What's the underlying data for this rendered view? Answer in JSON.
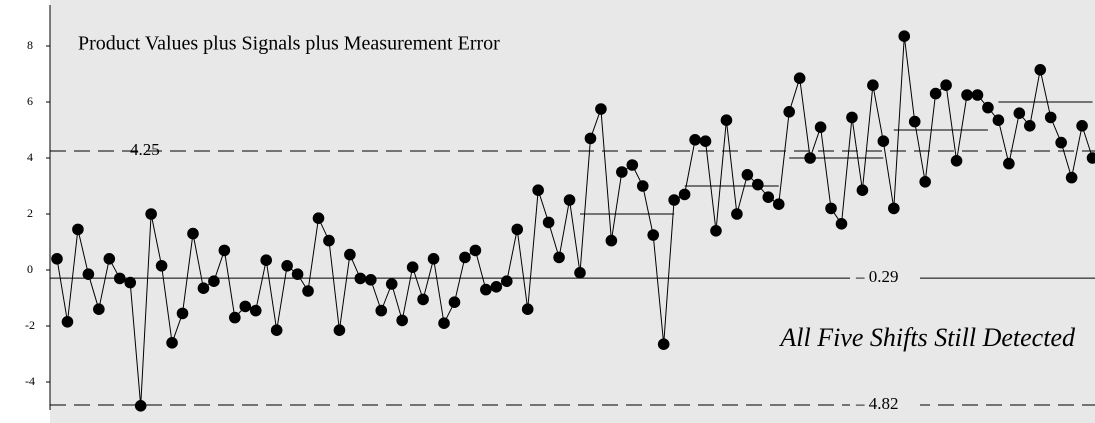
{
  "chart_data": {
    "type": "line",
    "title": "Product Values plus Signals plus Measurement Error",
    "annotation": "All Five Shifts Still Detected",
    "values": [
      0.4,
      -1.85,
      1.45,
      -0.15,
      -1.4,
      0.4,
      -0.3,
      -0.45,
      -4.85,
      2.0,
      0.15,
      -2.6,
      -1.55,
      1.3,
      -0.65,
      -0.4,
      0.7,
      -1.7,
      -1.3,
      -1.45,
      0.35,
      -2.15,
      0.15,
      -0.15,
      -0.75,
      1.85,
      1.05,
      -2.15,
      0.55,
      -0.3,
      -0.35,
      -1.45,
      -0.5,
      -1.8,
      0.1,
      -1.05,
      0.4,
      -1.9,
      -1.15,
      0.45,
      0.7,
      -0.7,
      -0.6,
      -0.4,
      1.45,
      -1.4,
      2.85,
      1.7,
      0.45,
      2.5,
      -0.1,
      4.7,
      5.75,
      1.05,
      3.5,
      3.75,
      3.0,
      1.25,
      -2.65,
      2.5,
      2.7,
      4.65,
      4.6,
      1.4,
      5.35,
      2.0,
      3.4,
      3.05,
      2.6,
      2.35,
      5.65,
      6.85,
      4.0,
      5.1,
      2.2,
      1.65,
      5.45,
      2.85,
      6.6,
      4.6,
      2.2,
      8.35,
      5.3,
      3.15,
      6.3,
      6.6,
      3.9,
      6.25,
      6.25,
      5.8,
      5.35,
      3.8,
      5.6,
      5.15,
      7.15,
      5.45,
      4.55,
      3.3,
      5.15,
      4.0
    ],
    "color": "#000000",
    "ylim": [
      -5,
      9.5
    ],
    "yticks": [
      -4,
      -2,
      0,
      2,
      4,
      6,
      8
    ],
    "limits": {
      "upper": {
        "value": 4.25,
        "label": "4.25"
      },
      "center": {
        "value": -0.29,
        "label": "– 0.29"
      },
      "lower": {
        "value": -4.82,
        "label": "– 4.82"
      }
    },
    "shifts": [
      {
        "start": 51,
        "end": 60,
        "value": 2
      },
      {
        "start": 61,
        "end": 70,
        "value": 3
      },
      {
        "start": 71,
        "end": 80,
        "value": 4
      },
      {
        "start": 81,
        "end": 90,
        "value": 5
      },
      {
        "start": 91,
        "end": 100,
        "value": 6
      }
    ]
  }
}
